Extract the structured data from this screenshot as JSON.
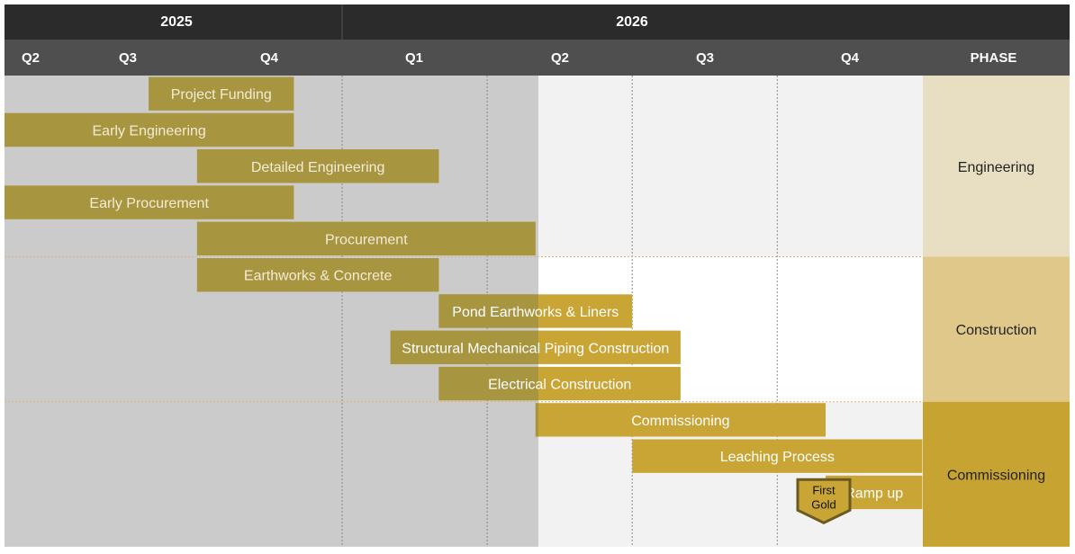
{
  "chart_data": {
    "type": "gantt",
    "years": [
      {
        "label": "2025",
        "start": "2025-Q2",
        "end": "2025-Q4"
      },
      {
        "label": "2026",
        "start": "2026-Q1",
        "end": "2026-Q4"
      }
    ],
    "quarters": [
      "Q2",
      "Q3",
      "Q4",
      "Q1",
      "Q2",
      "Q3",
      "Q4"
    ],
    "phase_header": "PHASE",
    "tasks": [
      {
        "name": "Project Funding",
        "start": "2025-09",
        "end": "2025-11",
        "phase": "Engineering"
      },
      {
        "name": "Early Engineering",
        "start": "2025-04",
        "end": "2025-11",
        "phase": "Engineering"
      },
      {
        "name": "Detailed Engineering",
        "start": "2025-10",
        "end": "2026-02",
        "phase": "Engineering"
      },
      {
        "name": "Early Procurement",
        "start": "2025-04",
        "end": "2025-11",
        "phase": "Engineering"
      },
      {
        "name": "Procurement",
        "start": "2025-10",
        "end": "2026-04",
        "phase": "Engineering"
      },
      {
        "name": "Earthworks & Concrete",
        "start": "2025-10",
        "end": "2026-02",
        "phase": "Construction"
      },
      {
        "name": "Pond Earthworks & Liners",
        "start": "2026-03",
        "end": "2026-06",
        "phase": "Construction"
      },
      {
        "name": "Structural Mechanical Piping Construction",
        "start": "2026-02",
        "end": "2026-07",
        "phase": "Construction"
      },
      {
        "name": "Electrical Construction",
        "start": "2026-03",
        "end": "2026-07",
        "phase": "Construction"
      },
      {
        "name": "Commissioning",
        "start": "2026-05",
        "end": "2026-10",
        "phase": "Commissioning"
      },
      {
        "name": "Leaching Process",
        "start": "2026-07",
        "end": "2026-12",
        "phase": "Commissioning"
      },
      {
        "name": "Ramp up",
        "start": "2026-11",
        "end": "2026-12",
        "phase": "Commissioning"
      }
    ],
    "milestones": [
      {
        "name": "First Gold",
        "date": "2026-10"
      }
    ],
    "phases": [
      {
        "name": "Engineering",
        "rows": [
          0,
          4
        ],
        "color": "#e8dfc3"
      },
      {
        "name": "Construction",
        "rows": [
          5,
          8
        ],
        "color": "#dfc88a"
      },
      {
        "name": "Commissioning",
        "rows": [
          9,
          12
        ],
        "color": "#c7a431"
      }
    ],
    "colors": {
      "header_dark": "#2b2b2b",
      "header_quarters": "#4f4f4f",
      "bar": "#c9a536",
      "bar_past": "#a8953f",
      "past_shade": "#c8c8c8",
      "future_bg": "#f2f2f2",
      "construction_bg": "#ffffff"
    }
  }
}
